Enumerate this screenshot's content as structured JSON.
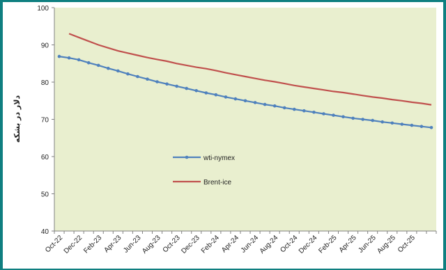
{
  "chart_data": {
    "type": "line",
    "title": "",
    "xlabel": "",
    "ylabel": "دلار در بشکه",
    "ylim": [
      40,
      100
    ],
    "yticks": [
      40,
      50,
      60,
      70,
      80,
      90,
      100
    ],
    "grid": false,
    "legend_position": "center-left",
    "plot_background": "#e9efcf",
    "categories": [
      "Oct-22",
      "Nov-22",
      "Dec-22",
      "Jan-23",
      "Feb-23",
      "Mar-23",
      "Apr-23",
      "May-23",
      "Jun-23",
      "Jul-23",
      "Aug-23",
      "Sep-23",
      "Oct-23",
      "Nov-23",
      "Dec-23",
      "Jan-24",
      "Feb-24",
      "Mar-24",
      "Apr-24",
      "May-24",
      "Jun-24",
      "Jul-24",
      "Aug-24",
      "Sep-24",
      "Oct-24",
      "Nov-24",
      "Dec-24",
      "Jan-25",
      "Feb-25",
      "Mar-25",
      "Apr-25",
      "May-25",
      "Jun-25",
      "Jul-25",
      "Aug-25",
      "Sep-25",
      "Oct-25",
      "Nov-25",
      "Dec-25"
    ],
    "xtick_labels": [
      "Oct-22",
      "Dec-22",
      "Feb-23",
      "Apr-23",
      "Jun-23",
      "Aug-23",
      "Oct-23",
      "Dec-23",
      "Feb-24",
      "Apr-24",
      "Jun-24",
      "Aug-24",
      "Oct-24",
      "Dec-24",
      "Feb-25",
      "Apr-25",
      "Jun-25",
      "Aug-25",
      "Oct-25"
    ],
    "series": [
      {
        "name": "wti-nymex",
        "color": "#4f81bd",
        "marker": "circle",
        "values": [
          86.9,
          86.5,
          86.0,
          85.2,
          84.5,
          83.7,
          83.0,
          82.2,
          81.5,
          80.8,
          80.1,
          79.5,
          78.9,
          78.3,
          77.7,
          77.1,
          76.6,
          76.0,
          75.5,
          75.0,
          74.5,
          74.0,
          73.6,
          73.1,
          72.7,
          72.3,
          71.9,
          71.5,
          71.1,
          70.7,
          70.3,
          70.0,
          69.7,
          69.3,
          69.0,
          68.7,
          68.4,
          68.1,
          67.8
        ]
      },
      {
        "name": "Brent-ice",
        "color": "#c0504d",
        "marker": "none",
        "values": [
          null,
          93.0,
          92.0,
          91.0,
          90.0,
          89.2,
          88.4,
          87.8,
          87.2,
          86.6,
          86.1,
          85.6,
          85.0,
          84.5,
          84.0,
          83.6,
          83.1,
          82.5,
          82.0,
          81.5,
          81.0,
          80.5,
          80.1,
          79.6,
          79.1,
          78.7,
          78.3,
          77.9,
          77.5,
          77.2,
          76.8,
          76.4,
          76.0,
          75.7,
          75.3,
          75.0,
          74.6,
          74.3,
          73.9
        ]
      }
    ]
  }
}
